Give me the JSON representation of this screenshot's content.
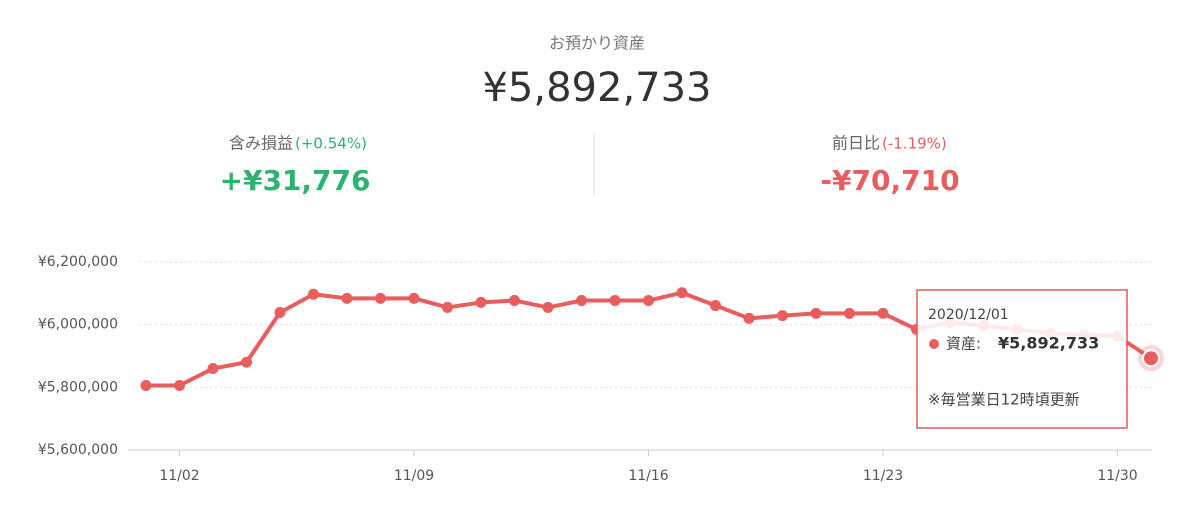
{
  "summary": {
    "title": "お預かり資産",
    "total": "¥5,892,733",
    "left": {
      "label": "含み損益",
      "pct": "(+0.54%)",
      "value": "+¥31,776"
    },
    "right": {
      "label": "前日比",
      "pct": "(-1.19%)",
      "value": "-¥70,710"
    }
  },
  "tooltip": {
    "date": "2020/12/01",
    "label": "資産:",
    "value": "¥5,892,733",
    "note": "※毎営業日12時頃更新"
  },
  "chart_data": {
    "type": "line",
    "categories": [
      null,
      "11/02",
      null,
      null,
      null,
      null,
      null,
      null,
      "11/09",
      null,
      null,
      null,
      null,
      null,
      null,
      "11/16",
      null,
      null,
      null,
      null,
      null,
      null,
      "11/23",
      null,
      null,
      null,
      null,
      null,
      null,
      "11/30",
      null
    ],
    "series": [
      {
        "name": "資産",
        "color": "#e85d5d",
        "values": [
          5806000,
          5806000,
          5860000,
          5880000,
          6039000,
          6097000,
          6084000,
          6084000,
          6084000,
          6055000,
          6071000,
          6077000,
          6055000,
          6077000,
          6077000,
          6077000,
          6102000,
          6061000,
          6020000,
          6029000,
          6036000,
          6036000,
          6036000,
          5985000,
          6007000,
          5997000,
          5985000,
          5972000,
          5968000,
          5963443,
          5892733
        ]
      }
    ],
    "ylim": [
      5600000,
      6200000
    ],
    "yticks": [
      {
        "value": 5600000,
        "label": "¥5,600,000"
      },
      {
        "value": 5800000,
        "label": "¥5,800,000"
      },
      {
        "value": 6000000,
        "label": "¥6,000,000"
      },
      {
        "value": 6200000,
        "label": "¥6,200,000"
      }
    ],
    "grid": true
  }
}
